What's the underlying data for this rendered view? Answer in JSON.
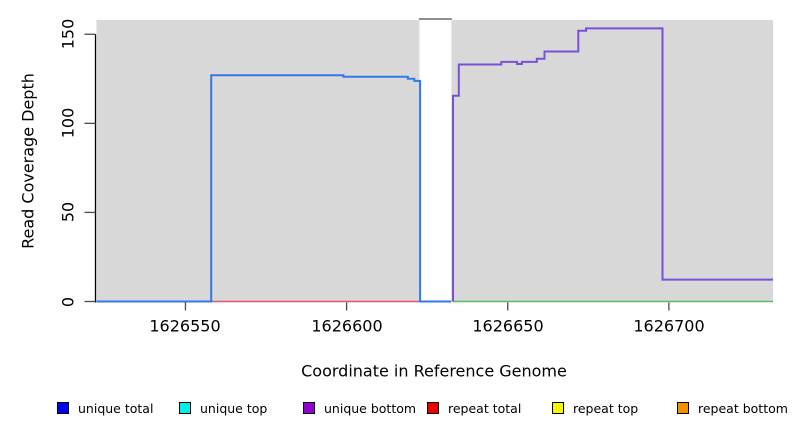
{
  "chart_data": {
    "type": "line",
    "subtype": "step-coverage-plot",
    "title": "",
    "xlabel": "Coordinate in Reference Genome",
    "ylabel": "Read Coverage Depth",
    "xlim": [
      1626522.4,
      1626732.3
    ],
    "ylim": [
      0,
      158
    ],
    "xticks": [
      1626550,
      1626600,
      1626650,
      1626700
    ],
    "yticks": [
      0,
      50,
      100,
      150
    ],
    "grid": "off",
    "plot_background_color": "#d8d8d8",
    "gap_region": {
      "x0": 1626622.6,
      "x1": 1626632.5,
      "fill": "#ffffff",
      "top_border_color": "#8e8e8e"
    },
    "series": [
      {
        "name": "repeat-baseline",
        "color": "#e05672",
        "width": 1.6,
        "points": [
          [
            1626558,
            0
          ],
          [
            1626622.6,
            0
          ]
        ]
      },
      {
        "name": "right-baseline",
        "color": "#5aba6e",
        "width": 1.6,
        "points": [
          [
            1626633,
            0
          ],
          [
            1626732.3,
            0
          ]
        ]
      },
      {
        "name": "unique-coverage-left",
        "color": "#3279e8",
        "width": 2,
        "points": [
          [
            1626522.4,
            0
          ],
          [
            1626558,
            0
          ],
          [
            1626558,
            127
          ],
          [
            1626599,
            127
          ],
          [
            1626599,
            126.2
          ],
          [
            1626619,
            126.2
          ],
          [
            1626619,
            125
          ],
          [
            1626621,
            125
          ],
          [
            1626621,
            123.8
          ],
          [
            1626622.8,
            123.8
          ],
          [
            1626622.8,
            0
          ],
          [
            1626632.5,
            0
          ]
        ]
      },
      {
        "name": "unique-coverage-right",
        "color": "#7a50d8",
        "width": 2,
        "points": [
          [
            1626633,
            0
          ],
          [
            1626633,
            115.5
          ],
          [
            1626634.8,
            115.5
          ],
          [
            1626634.8,
            133
          ],
          [
            1626648,
            133
          ],
          [
            1626648,
            134.5
          ],
          [
            1626652.9,
            134.5
          ],
          [
            1626652.9,
            133.3
          ],
          [
            1626654.4,
            133.3
          ],
          [
            1626654.4,
            134.5
          ],
          [
            1626659,
            134.5
          ],
          [
            1626659,
            136.3
          ],
          [
            1626661.4,
            136.3
          ],
          [
            1626661.4,
            140.3
          ],
          [
            1626671.9,
            140.3
          ],
          [
            1626671.9,
            152
          ],
          [
            1626674.3,
            152
          ],
          [
            1626674.3,
            153.3
          ],
          [
            1626698,
            153.3
          ],
          [
            1626698,
            12.3
          ],
          [
            1626732.3,
            12.3
          ]
        ]
      }
    ],
    "legend": [
      {
        "label": "unique total",
        "color": "#0000ee"
      },
      {
        "label": "unique top",
        "color": "#00eeee"
      },
      {
        "label": "unique bottom",
        "color": "#9400d3"
      },
      {
        "label": "repeat total",
        "color": "#ee0000"
      },
      {
        "label": "repeat top",
        "color": "#f5f500"
      },
      {
        "label": "repeat bottom",
        "color": "#f29100"
      }
    ],
    "legend_position": "bottom",
    "axis_color": "#000000",
    "tick_color": "#4a4a4a"
  }
}
